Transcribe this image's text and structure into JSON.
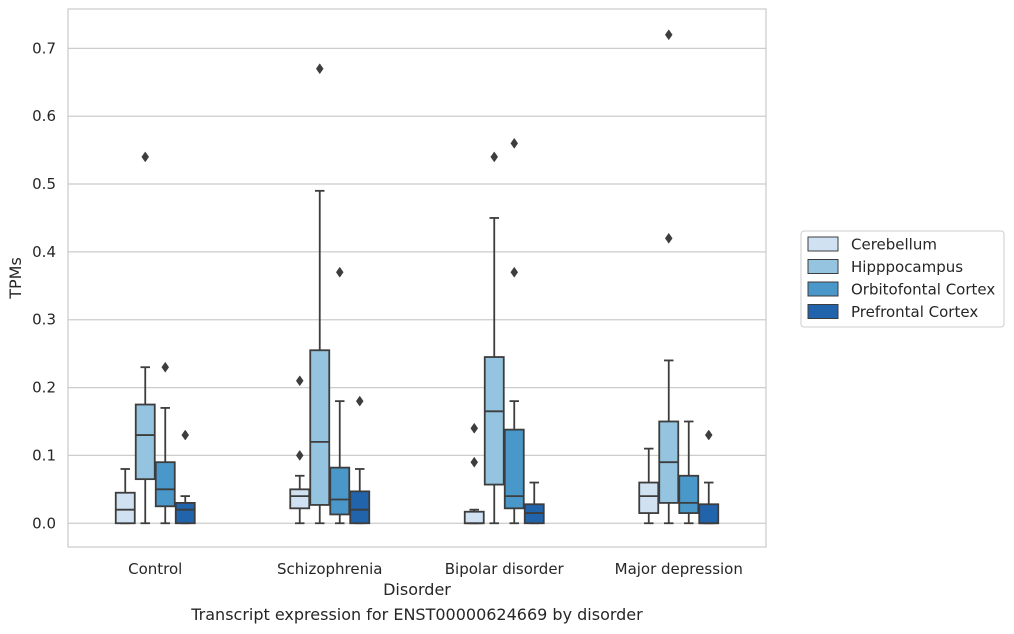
{
  "caption": "Transcript expression for ENST00000624669 by disorder",
  "chart_data": {
    "type": "box",
    "xlabel": "Disorder",
    "ylabel": "TPMs",
    "ylim": [
      -0.035,
      0.758
    ],
    "yticks": [
      0.0,
      0.1,
      0.2,
      0.3,
      0.4,
      0.5,
      0.6,
      0.7
    ],
    "ytick_labels": [
      "0.0",
      "0.1",
      "0.2",
      "0.3",
      "0.4",
      "0.5",
      "0.6",
      "0.7"
    ],
    "grid": "horizontal",
    "legend_position": "right",
    "categories": [
      "Control",
      "Schizophrenia",
      "Bipolar disorder",
      "Major depression"
    ],
    "series": [
      {
        "name": "Cerebellum",
        "color": "#d0e1f2",
        "boxes": [
          {
            "whislo": 0.0,
            "q1": 0.0,
            "med": 0.02,
            "q3": 0.045,
            "whishi": 0.08,
            "fliers": []
          },
          {
            "whislo": 0.0,
            "q1": 0.022,
            "med": 0.04,
            "q3": 0.05,
            "whishi": 0.07,
            "fliers": [
              0.1,
              0.21
            ]
          },
          {
            "whislo": 0.0,
            "q1": 0.0,
            "med": 0.0,
            "q3": 0.017,
            "whishi": 0.02,
            "fliers": [
              0.09,
              0.14
            ]
          },
          {
            "whislo": 0.0,
            "q1": 0.015,
            "med": 0.04,
            "q3": 0.06,
            "whishi": 0.11,
            "fliers": []
          }
        ]
      },
      {
        "name": "Hipppocampus",
        "color": "#94c4df",
        "boxes": [
          {
            "whislo": 0.0,
            "q1": 0.065,
            "med": 0.13,
            "q3": 0.175,
            "whishi": 0.23,
            "fliers": [
              0.54
            ]
          },
          {
            "whislo": 0.0,
            "q1": 0.027,
            "med": 0.12,
            "q3": 0.255,
            "whishi": 0.49,
            "fliers": [
              0.67
            ]
          },
          {
            "whislo": 0.0,
            "q1": 0.057,
            "med": 0.165,
            "q3": 0.245,
            "whishi": 0.45,
            "fliers": [
              0.54
            ]
          },
          {
            "whislo": 0.0,
            "q1": 0.03,
            "med": 0.09,
            "q3": 0.15,
            "whishi": 0.24,
            "fliers": [
              0.42,
              0.72
            ]
          }
        ]
      },
      {
        "name": "Orbitofontal Cortex",
        "color": "#4a98c9",
        "boxes": [
          {
            "whislo": 0.0,
            "q1": 0.025,
            "med": 0.05,
            "q3": 0.09,
            "whishi": 0.17,
            "fliers": [
              0.23
            ]
          },
          {
            "whislo": 0.0,
            "q1": 0.013,
            "med": 0.035,
            "q3": 0.082,
            "whishi": 0.18,
            "fliers": [
              0.37
            ]
          },
          {
            "whislo": 0.0,
            "q1": 0.022,
            "med": 0.04,
            "q3": 0.138,
            "whishi": 0.18,
            "fliers": [
              0.37,
              0.56
            ]
          },
          {
            "whislo": 0.0,
            "q1": 0.015,
            "med": 0.03,
            "q3": 0.07,
            "whishi": 0.15,
            "fliers": []
          }
        ]
      },
      {
        "name": "Prefrontal Cortex",
        "color": "#2164ab",
        "boxes": [
          {
            "whislo": 0.0,
            "q1": 0.0,
            "med": 0.02,
            "q3": 0.03,
            "whishi": 0.04,
            "fliers": [
              0.13
            ]
          },
          {
            "whislo": 0.0,
            "q1": 0.0,
            "med": 0.02,
            "q3": 0.047,
            "whishi": 0.08,
            "fliers": [
              0.18
            ]
          },
          {
            "whislo": 0.0,
            "q1": 0.0,
            "med": 0.015,
            "q3": 0.028,
            "whishi": 0.06,
            "fliers": []
          },
          {
            "whislo": 0.0,
            "q1": 0.0,
            "med": 0.0,
            "q3": 0.028,
            "whishi": 0.06,
            "fliers": [
              0.13
            ]
          }
        ]
      }
    ]
  }
}
